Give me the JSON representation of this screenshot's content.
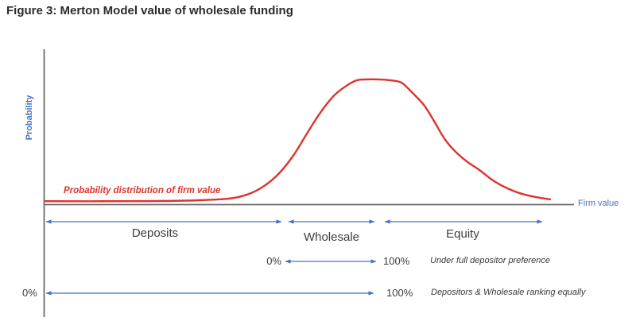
{
  "title": "Figure 3: Merton Model value of wholesale funding",
  "colors": {
    "curve": "#dd332d",
    "blue": "#4472c4",
    "axis": "#6b6b6b",
    "text": "#3d3d3d"
  },
  "y_axis_label": "Probability",
  "x_axis_label": "Firm value",
  "curve_annotation": "Probability distribution of firm value",
  "regions": {
    "deposits": "Deposits",
    "wholesale": "Wholesale",
    "equity": "Equity"
  },
  "scenario_rows": [
    {
      "from": "0%",
      "to": "100%",
      "note": "Under full depositor preference"
    },
    {
      "from": "0%",
      "to": "100%",
      "note": "Depositors & Wholesale ranking equally"
    }
  ],
  "chart_data": {
    "type": "line",
    "title": "Figure 3: Merton Model value of wholesale funding",
    "xlabel": "Firm value",
    "ylabel": "Probability",
    "x_range": [
      0,
      100
    ],
    "y_range": [
      0,
      1
    ],
    "grid": false,
    "legend": "none",
    "series": [
      {
        "name": "Probability distribution of firm value",
        "x": [
          0,
          15,
          28,
          36,
          40,
          43,
          46,
          49,
          52,
          54.5,
          57,
          59,
          61.5,
          63.5,
          66,
          68,
          70.5,
          72.5,
          75,
          77,
          79,
          81,
          83.5,
          86,
          88.5,
          91,
          94,
          97,
          100
        ],
        "y": [
          0.005,
          0.005,
          0.01,
          0.025,
          0.06,
          0.12,
          0.22,
          0.37,
          0.57,
          0.73,
          0.86,
          0.93,
          0.99,
          1.0,
          1.0,
          0.995,
          0.975,
          0.9,
          0.79,
          0.66,
          0.52,
          0.42,
          0.33,
          0.26,
          0.18,
          0.12,
          0.07,
          0.04,
          0.02
        ]
      }
    ],
    "segments": [
      {
        "label": "Deposits",
        "x_start": 0,
        "x_end": 47.5
      },
      {
        "label": "Wholesale",
        "x_start": 48.5,
        "x_end": 66
      },
      {
        "label": "Equity",
        "x_start": 68,
        "x_end": 100
      }
    ],
    "annotations": [
      {
        "text": "Under full depositor preference",
        "from_label": "0%",
        "to_label": "100%",
        "span": "Wholesale band"
      },
      {
        "text": "Depositors & Wholesale ranking equally",
        "from_label": "0%",
        "to_label": "100%",
        "span": "Deposits + Wholesale bands"
      }
    ]
  }
}
